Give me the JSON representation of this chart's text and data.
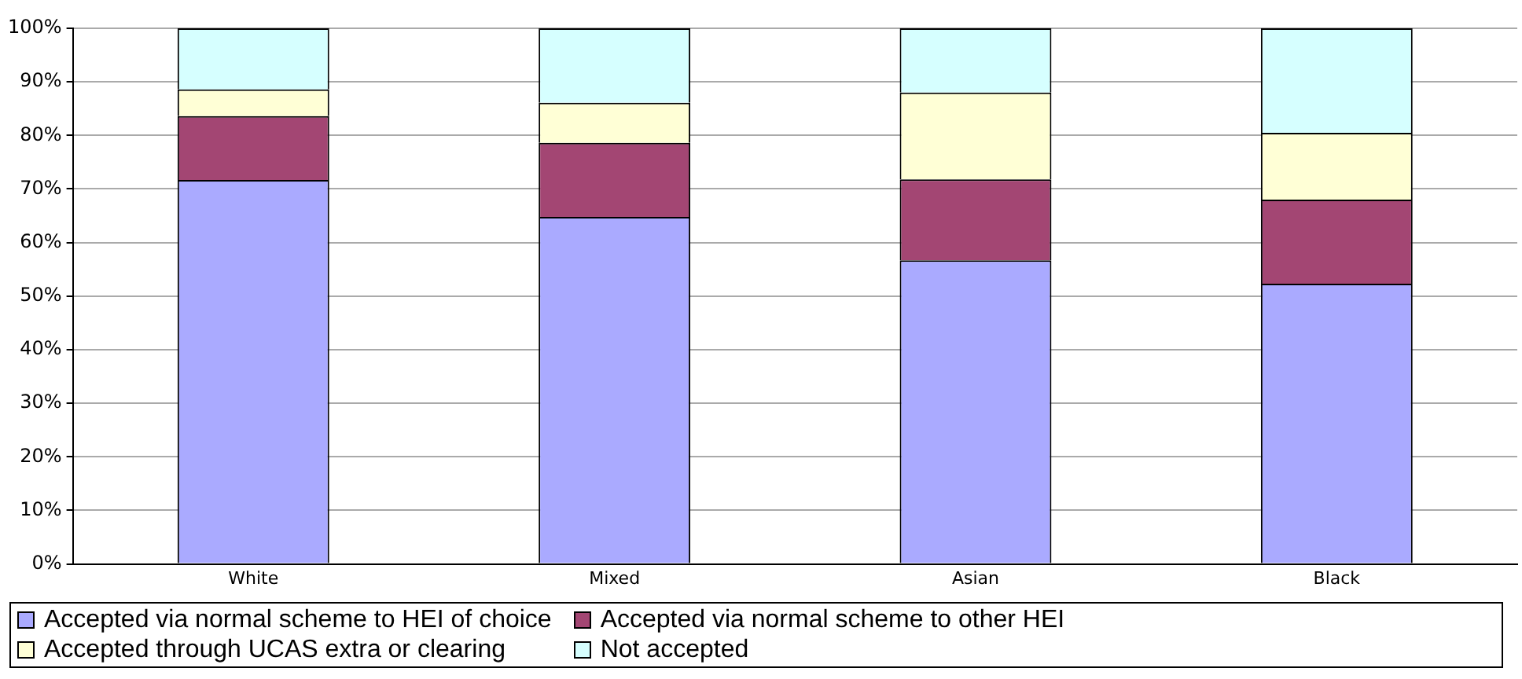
{
  "chart_data": {
    "type": "bar",
    "stacked": true,
    "categories": [
      "White",
      "Mixed",
      "Asian",
      "Black"
    ],
    "series": [
      {
        "name": "Accepted via normal scheme to HEI of choice",
        "color": "#aaaaff",
        "values": [
          71.7,
          64.8,
          56.7,
          52.3
        ]
      },
      {
        "name": "Accepted via normal scheme to other HEI",
        "color": "#a34673",
        "values": [
          11.9,
          13.8,
          15.1,
          15.7
        ]
      },
      {
        "name": "Accepted through UCAS extra or clearing",
        "color": "#ffffd6",
        "values": [
          5.0,
          7.5,
          16.2,
          12.5
        ]
      },
      {
        "name": "Not accepted",
        "color": "#d6ffff",
        "values": [
          11.4,
          13.9,
          12.0,
          19.5
        ]
      }
    ],
    "ylim": [
      0,
      100
    ],
    "yticks": [
      {
        "value": 0,
        "label": "0%"
      },
      {
        "value": 10,
        "label": "10%"
      },
      {
        "value": 20,
        "label": "20%"
      },
      {
        "value": 30,
        "label": "30%"
      },
      {
        "value": 40,
        "label": "40%"
      },
      {
        "value": 50,
        "label": "50%"
      },
      {
        "value": 60,
        "label": "60%"
      },
      {
        "value": 70,
        "label": "70%"
      },
      {
        "value": 80,
        "label": "80%"
      },
      {
        "value": 90,
        "label": "90%"
      },
      {
        "value": 100,
        "label": "100%"
      }
    ],
    "grid": "y",
    "legend": "bottom"
  }
}
